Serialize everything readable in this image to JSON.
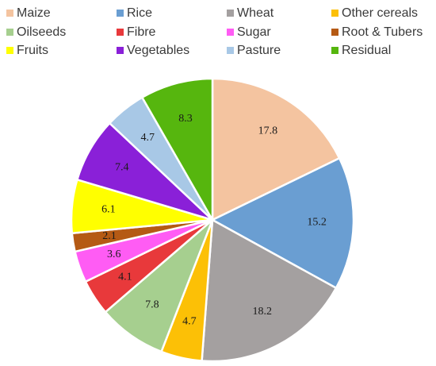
{
  "chart_data": {
    "type": "pie",
    "title": "",
    "legend_position": "top",
    "series": [
      {
        "name": "Maize",
        "value": 17.8,
        "color": "#f4c4a0"
      },
      {
        "name": "Rice",
        "value": 15.2,
        "color": "#6a9ed2"
      },
      {
        "name": "Wheat",
        "value": 18.2,
        "color": "#a4a0a0"
      },
      {
        "name": "Other cereals",
        "value": 4.7,
        "color": "#fcc006"
      },
      {
        "name": "Oilseeds",
        "value": 7.8,
        "color": "#a6cf8f"
      },
      {
        "name": "Fibre",
        "value": 4.1,
        "color": "#e8393b"
      },
      {
        "name": "Sugar",
        "value": 3.6,
        "color": "#ff5cf4"
      },
      {
        "name": "Root & Tubers",
        "value": 2.1,
        "color": "#b55a14"
      },
      {
        "name": "Fruits",
        "value": 6.1,
        "color": "#ffff00"
      },
      {
        "name": "Vegetables",
        "value": 7.4,
        "color": "#8a20d8"
      },
      {
        "name": "Pasture",
        "value": 4.7,
        "color": "#a8c8e6"
      },
      {
        "name": "Residual",
        "value": 8.3,
        "color": "#56b60e"
      }
    ]
  }
}
